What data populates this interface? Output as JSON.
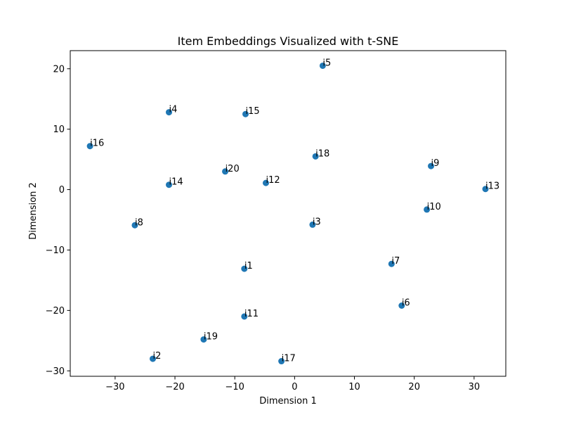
{
  "chart_data": {
    "type": "scatter",
    "title": "Item Embeddings Visualized with t-SNE",
    "xlabel": "Dimension 1",
    "ylabel": "Dimension 2",
    "xlim": [
      -37.5,
      35.3
    ],
    "ylim": [
      -30.9,
      23.0
    ],
    "xticks": [
      -30,
      -20,
      -10,
      0,
      10,
      20,
      30
    ],
    "yticks": [
      -30,
      -20,
      -10,
      0,
      10,
      20
    ],
    "tick_labels_x": [
      "−30",
      "−20",
      "−10",
      "0",
      "10",
      "20",
      "30"
    ],
    "tick_labels_y": [
      "−30",
      "−20",
      "−10",
      "0",
      "10",
      "20"
    ],
    "grid": false,
    "marker_color": "#1f77b4",
    "points": [
      {
        "label": "i1",
        "x": -8.4,
        "y": -13.1
      },
      {
        "label": "i2",
        "x": -23.7,
        "y": -28.0
      },
      {
        "label": "i3",
        "x": 3.0,
        "y": -5.8
      },
      {
        "label": "i4",
        "x": -21.0,
        "y": 12.8
      },
      {
        "label": "i5",
        "x": 4.7,
        "y": 20.5
      },
      {
        "label": "i6",
        "x": 17.9,
        "y": -19.2
      },
      {
        "label": "i7",
        "x": 16.2,
        "y": -12.3
      },
      {
        "label": "i8",
        "x": -26.7,
        "y": -5.9
      },
      {
        "label": "i9",
        "x": 22.8,
        "y": 3.9
      },
      {
        "label": "i10",
        "x": 22.1,
        "y": -3.3
      },
      {
        "label": "i11",
        "x": -8.4,
        "y": -21.0
      },
      {
        "label": "i12",
        "x": -4.8,
        "y": 1.1
      },
      {
        "label": "i13",
        "x": 31.9,
        "y": 0.1
      },
      {
        "label": "i14",
        "x": -21.0,
        "y": 0.8
      },
      {
        "label": "i15",
        "x": -8.2,
        "y": 12.5
      },
      {
        "label": "i16",
        "x": -34.2,
        "y": 7.2
      },
      {
        "label": "i17",
        "x": -2.2,
        "y": -28.4
      },
      {
        "label": "i18",
        "x": 3.5,
        "y": 5.5
      },
      {
        "label": "i19",
        "x": -15.2,
        "y": -24.8
      },
      {
        "label": "i20",
        "x": -11.6,
        "y": 3.0
      }
    ]
  }
}
